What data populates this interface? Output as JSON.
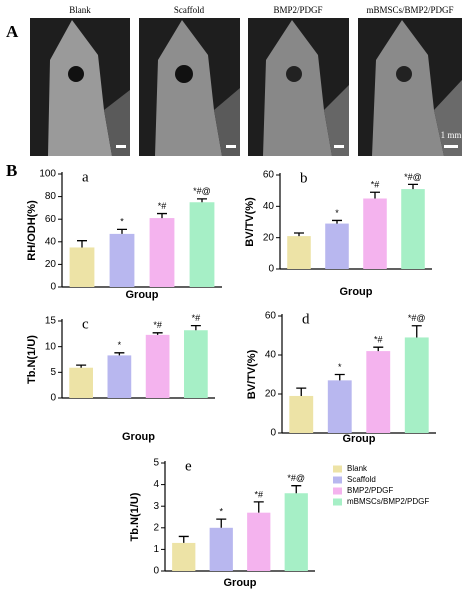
{
  "panel_a": {
    "label": "A",
    "images": [
      "Blank",
      "Scaffold",
      "BMP2/PDGF",
      "mBMSCs/BMP2/PDGF"
    ],
    "scale_bar": "1 mm"
  },
  "panel_b": {
    "label": "B"
  },
  "groups": [
    {
      "name": "Blank",
      "color": "#ede3a6"
    },
    {
      "name": "Scaffold",
      "color": "#b8b7ef"
    },
    {
      "name": "BMP2/PDGF",
      "color": "#f4b3ee"
    },
    {
      "name": "mBMSCs/BMP2/PDGF",
      "color": "#a6efc6"
    }
  ],
  "chart_data": [
    {
      "type": "bar",
      "panel": "a",
      "ylabel": "RH/ODH(%)",
      "xlabel": "Group",
      "ylim": [
        0,
        100
      ],
      "yticks": [
        0,
        20,
        40,
        60,
        80,
        100
      ],
      "values": [
        35,
        47,
        61,
        75
      ],
      "errors": [
        6,
        4,
        4,
        3
      ],
      "annotations": [
        null,
        "*",
        "*#",
        "*#@"
      ]
    },
    {
      "type": "bar",
      "panel": "b",
      "ylabel": "BV/TV(%)",
      "xlabel": "Group",
      "ylim": [
        0,
        60
      ],
      "yticks": [
        0,
        20,
        40,
        60
      ],
      "values": [
        21,
        29,
        45,
        51
      ],
      "errors": [
        2,
        2,
        4,
        3
      ],
      "annotations": [
        null,
        "*",
        "*#",
        "*#@"
      ]
    },
    {
      "type": "bar",
      "panel": "c",
      "ylabel": "Tb.N(1/U)",
      "xlabel": "Group",
      "ylim": [
        0,
        15
      ],
      "yticks": [
        0,
        5,
        10,
        15
      ],
      "values": [
        5.9,
        8.3,
        12.3,
        13.2
      ],
      "errors": [
        0.5,
        0.5,
        0.4,
        0.9
      ],
      "annotations": [
        null,
        "*",
        "*#",
        "*#"
      ]
    },
    {
      "type": "bar",
      "panel": "d",
      "ylabel": "BV/TV(%)",
      "xlabel": "Group",
      "ylim": [
        0,
        60
      ],
      "yticks": [
        0,
        20,
        40,
        60
      ],
      "values": [
        19,
        27,
        42,
        49
      ],
      "errors": [
        4,
        3,
        2,
        6
      ],
      "annotations": [
        null,
        "*",
        "*#",
        "*#@"
      ]
    },
    {
      "type": "bar",
      "panel": "e",
      "ylabel": "Tb.N(1/U)",
      "xlabel": "Group",
      "ylim": [
        0,
        5
      ],
      "yticks": [
        0,
        1,
        2,
        3,
        4,
        5
      ],
      "values": [
        1.3,
        2.0,
        2.7,
        3.6
      ],
      "errors": [
        0.3,
        0.4,
        0.5,
        0.35
      ],
      "annotations": [
        null,
        "*",
        "*#",
        "*#@"
      ],
      "legend": "right"
    }
  ]
}
